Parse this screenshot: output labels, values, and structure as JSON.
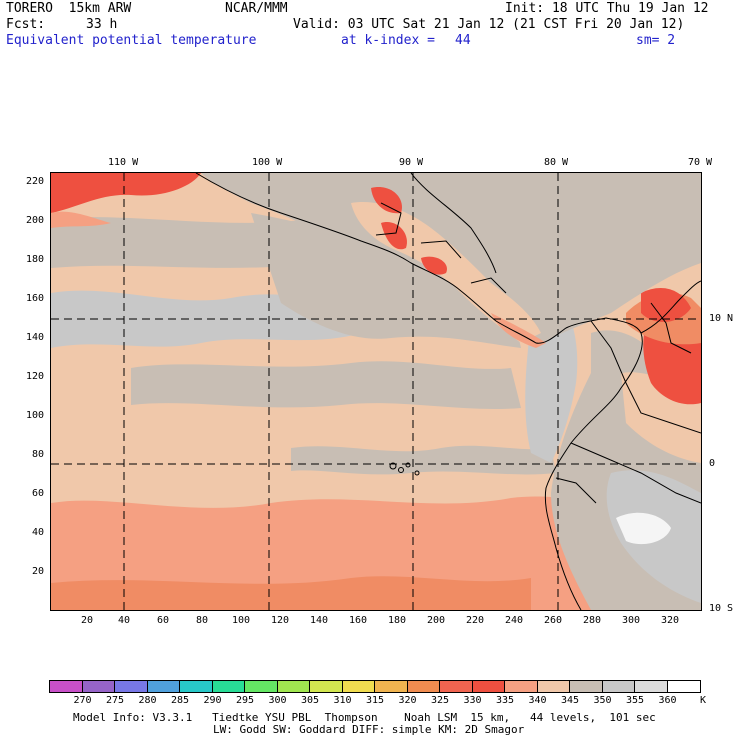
{
  "header": {
    "model": "TORERO  15km ARW",
    "org": "NCAR/MMM",
    "init": "Init: 18 UTC Thu 19 Jan 12",
    "fcst_label": "Fcst:",
    "fcst_value": "33 h",
    "valid": "Valid: 03 UTC Sat 21 Jan 12 (21 CST Fri 20 Jan 12)",
    "field": "Equivalent potential temperature",
    "at": "at k-index =",
    "k_index": "44",
    "sm": "sm= 2"
  },
  "map": {
    "lon_labels": [
      "110 W",
      "100 W",
      "90 W",
      "80 W",
      "70 W"
    ],
    "lat_labels": [
      "10 N",
      "0",
      "10 S"
    ],
    "y_grid_labels": [
      "220",
      "200",
      "180",
      "160",
      "140",
      "120",
      "100",
      "80",
      "60",
      "40",
      "20"
    ],
    "x_grid_labels": [
      "20",
      "40",
      "60",
      "80",
      "100",
      "120",
      "140",
      "160",
      "180",
      "200",
      "220",
      "240",
      "260",
      "280",
      "300",
      "320"
    ],
    "colors": {
      "gray": "#c8c8c8",
      "tan": "#c8beb4",
      "peach": "#f0c8aa",
      "salmon": "#f5a082",
      "orange": "#f08c64",
      "red": "#ee5040",
      "white": "#f5f5f5"
    }
  },
  "colorbar": {
    "values": [
      "270",
      "275",
      "280",
      "285",
      "290",
      "295",
      "300",
      "305",
      "310",
      "315",
      "320",
      "325",
      "330",
      "335",
      "340",
      "345",
      "350",
      "355",
      "360"
    ],
    "unit": "K",
    "colors": [
      "#c850c8",
      "#9664c8",
      "#7878e6",
      "#50a0dc",
      "#28c8c8",
      "#28dc96",
      "#64e664",
      "#a0e650",
      "#d2e650",
      "#f0dc50",
      "#f0b450",
      "#f08c50",
      "#f06450",
      "#ee5040",
      "#f5a082",
      "#f0c8aa",
      "#c8beb4",
      "#c8c8c8",
      "#dcdcdc",
      "#ffffff"
    ]
  },
  "footer": {
    "line1": "Model Info: V3.3.1   Tiedtke YSU PBL  Thompson    Noah LSM  15 km,   44 levels,  101 sec",
    "line2": "LW: Godd SW: Goddard DIFF: simple KM: 2D Smagor"
  }
}
